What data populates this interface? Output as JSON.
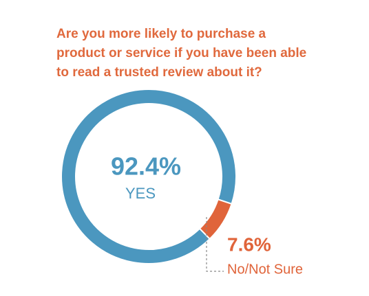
{
  "chart_data": {
    "type": "donut",
    "title": "Are you more likely to purchase a product or service if you have been able to read a trusted review about it?",
    "categories": [
      "YES",
      "No/Not Sure"
    ],
    "values": [
      92.4,
      7.6
    ],
    "value_labels": [
      "92.4%",
      "7.6%"
    ],
    "colors": [
      "#4b97bf",
      "#e0643a"
    ]
  }
}
